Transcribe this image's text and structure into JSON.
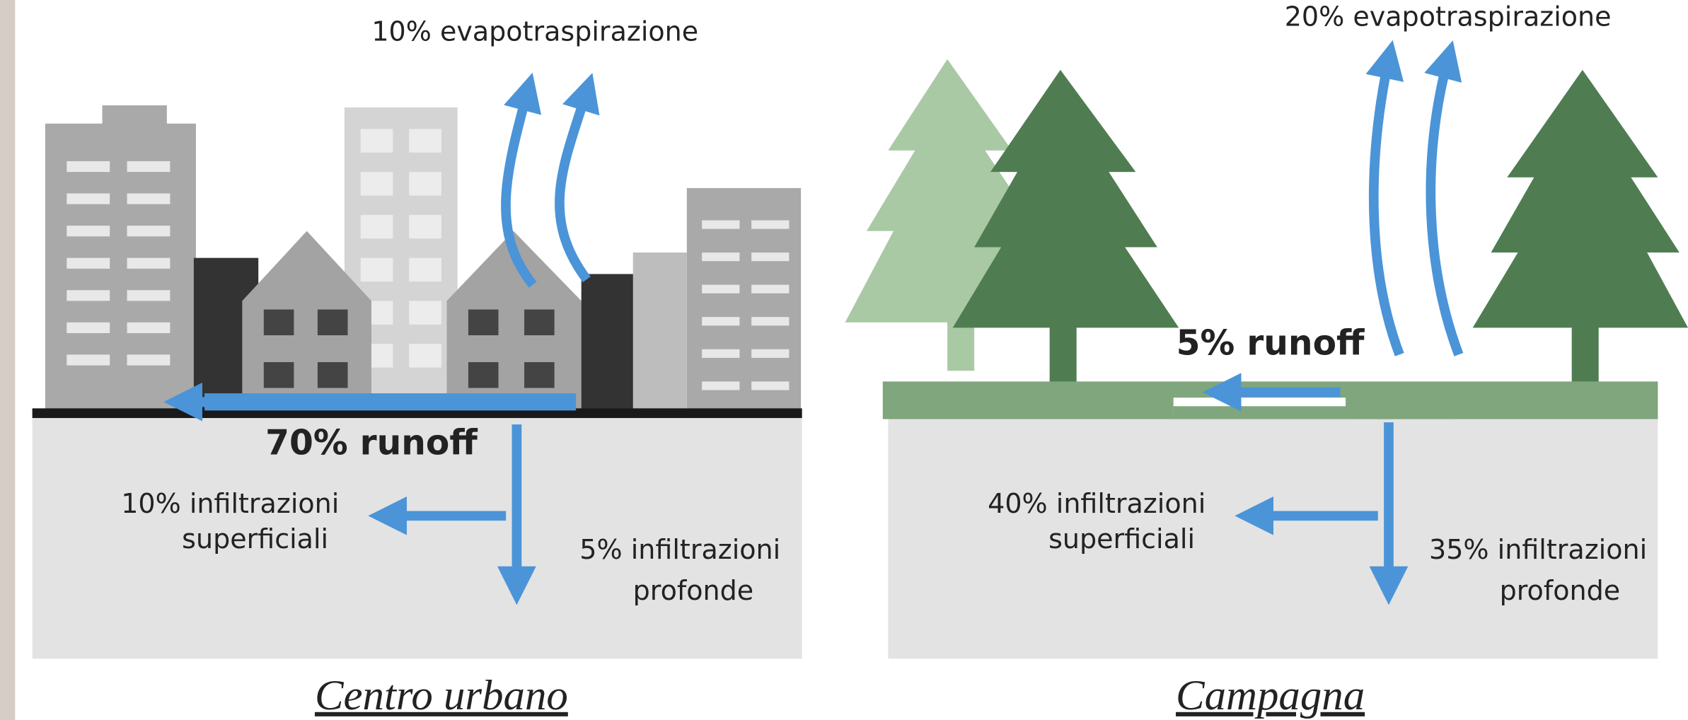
{
  "panels": [
    {
      "title": "Centro urbano",
      "evapotranspiration": "10% evapotraspirazione",
      "runoff": "70% runoff",
      "shallow_infiltration": [
        "10% infiltrazioni",
        "superficiali"
      ],
      "deep_infiltration": [
        "5% infiltrazioni",
        "profonde"
      ]
    },
    {
      "title": "Campagna",
      "evapotranspiration": "20% evapotraspirazione",
      "runoff": "5% runoff",
      "shallow_infiltration": [
        "40% infiltrazioni",
        "superficiali"
      ],
      "deep_infiltration": [
        "35% infiltrazioni",
        "profonde"
      ]
    }
  ]
}
